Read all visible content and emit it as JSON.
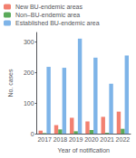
{
  "chart_data": {
    "type": "bar",
    "categories": [
      "2017",
      "2018",
      "2019",
      "2020",
      "2021",
      "2022"
    ],
    "series": [
      {
        "name": "New BU-endemic areas",
        "color": "#f28070",
        "values": [
          10,
          28,
          52,
          40,
          55,
          72
        ]
      },
      {
        "name": "Non–BU-endemic area",
        "color": "#5aaa5a",
        "values": [
          2,
          14,
          8,
          12,
          3,
          16
        ]
      },
      {
        "name": "Established BU-endemic area",
        "color": "#7eb4e8",
        "values": [
          218,
          215,
          310,
          248,
          163,
          255
        ]
      }
    ],
    "xlabel": "Year of notification",
    "ylabel": "No. cases",
    "ylim": [
      0,
      330
    ],
    "yticks": [
      0,
      100,
      200,
      300
    ],
    "grid": false,
    "legend": "upper left"
  }
}
